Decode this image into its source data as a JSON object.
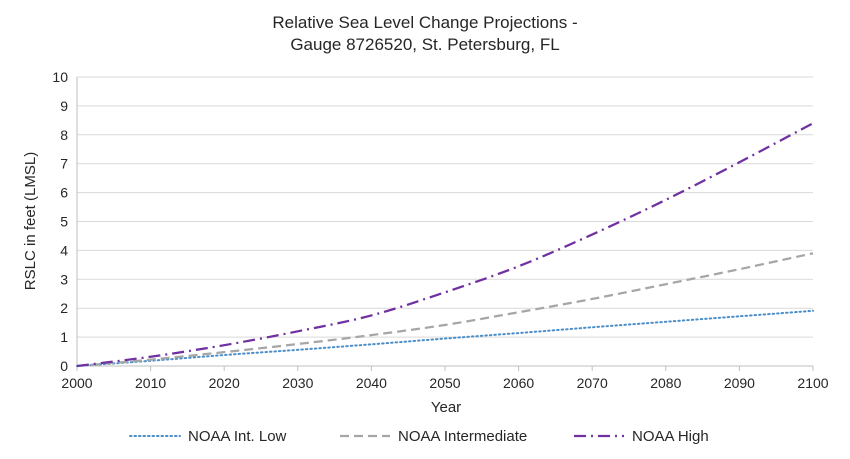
{
  "chart_data": {
    "type": "line",
    "title": "Relative Sea Level Change Projections -",
    "subtitle": "Gauge 8726520, St. Petersburg, FL",
    "xlabel": "Year",
    "ylabel": "RSLC in feet (LMSL)",
    "xlim": [
      2000,
      2100
    ],
    "ylim": [
      0,
      10
    ],
    "xticks": [
      2000,
      2010,
      2020,
      2030,
      2040,
      2050,
      2060,
      2070,
      2080,
      2090,
      2100
    ],
    "yticks": [
      0,
      1,
      2,
      3,
      4,
      5,
      6,
      7,
      8,
      9,
      10
    ],
    "grid": "horizontal",
    "legend": "bottom",
    "x": [
      2000,
      2010,
      2020,
      2030,
      2040,
      2050,
      2060,
      2070,
      2080,
      2090,
      2100
    ],
    "series": [
      {
        "name": "NOAA Int. Low",
        "color": "#4a8ec9",
        "style": "dotted",
        "values": [
          0.0,
          0.18,
          0.38,
          0.56,
          0.75,
          0.95,
          1.14,
          1.34,
          1.53,
          1.72,
          1.91
        ]
      },
      {
        "name": "NOAA Intermediate",
        "color": "#a6a6a6",
        "style": "dashed",
        "values": [
          0.0,
          0.22,
          0.48,
          0.76,
          1.07,
          1.42,
          1.86,
          2.32,
          2.83,
          3.35,
          3.9
        ]
      },
      {
        "name": "NOAA High",
        "color": "#7030a0",
        "style": "dash-dot",
        "values": [
          0.0,
          0.32,
          0.72,
          1.2,
          1.75,
          2.55,
          3.45,
          4.55,
          5.75,
          7.05,
          8.4
        ]
      }
    ]
  }
}
